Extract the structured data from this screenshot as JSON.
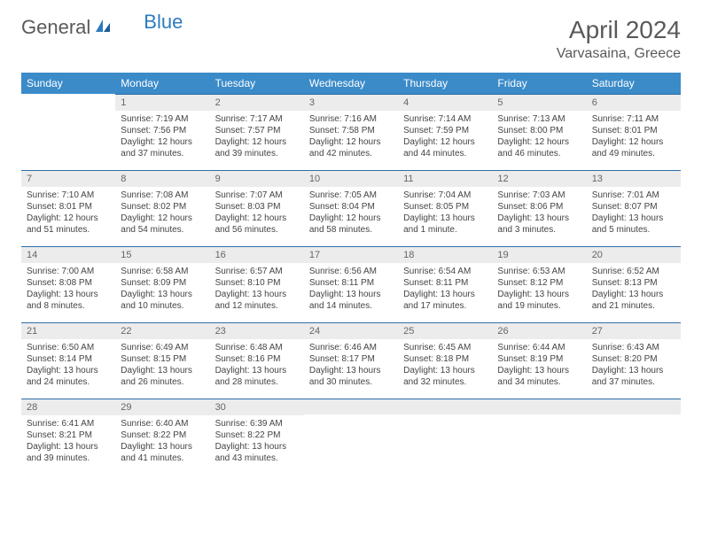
{
  "logo": {
    "text1": "General",
    "text2": "Blue"
  },
  "title": {
    "month": "April 2024",
    "location": "Varvasaina, Greece"
  },
  "colors": {
    "header_bg": "#3b8bc9",
    "header_text": "#ffffff",
    "daynum_bg": "#ececec",
    "daynum_border": "#2f6fa8",
    "logo_gray": "#5a5a5a",
    "logo_blue": "#2f7bbf",
    "body_text": "#444444"
  },
  "weekdays": [
    "Sunday",
    "Monday",
    "Tuesday",
    "Wednesday",
    "Thursday",
    "Friday",
    "Saturday"
  ],
  "cells": [
    {
      "day": "",
      "lines": []
    },
    {
      "day": "1",
      "lines": [
        "Sunrise: 7:19 AM",
        "Sunset: 7:56 PM",
        "Daylight: 12 hours",
        "and 37 minutes."
      ]
    },
    {
      "day": "2",
      "lines": [
        "Sunrise: 7:17 AM",
        "Sunset: 7:57 PM",
        "Daylight: 12 hours",
        "and 39 minutes."
      ]
    },
    {
      "day": "3",
      "lines": [
        "Sunrise: 7:16 AM",
        "Sunset: 7:58 PM",
        "Daylight: 12 hours",
        "and 42 minutes."
      ]
    },
    {
      "day": "4",
      "lines": [
        "Sunrise: 7:14 AM",
        "Sunset: 7:59 PM",
        "Daylight: 12 hours",
        "and 44 minutes."
      ]
    },
    {
      "day": "5",
      "lines": [
        "Sunrise: 7:13 AM",
        "Sunset: 8:00 PM",
        "Daylight: 12 hours",
        "and 46 minutes."
      ]
    },
    {
      "day": "6",
      "lines": [
        "Sunrise: 7:11 AM",
        "Sunset: 8:01 PM",
        "Daylight: 12 hours",
        "and 49 minutes."
      ]
    },
    {
      "day": "7",
      "lines": [
        "Sunrise: 7:10 AM",
        "Sunset: 8:01 PM",
        "Daylight: 12 hours",
        "and 51 minutes."
      ]
    },
    {
      "day": "8",
      "lines": [
        "Sunrise: 7:08 AM",
        "Sunset: 8:02 PM",
        "Daylight: 12 hours",
        "and 54 minutes."
      ]
    },
    {
      "day": "9",
      "lines": [
        "Sunrise: 7:07 AM",
        "Sunset: 8:03 PM",
        "Daylight: 12 hours",
        "and 56 minutes."
      ]
    },
    {
      "day": "10",
      "lines": [
        "Sunrise: 7:05 AM",
        "Sunset: 8:04 PM",
        "Daylight: 12 hours",
        "and 58 minutes."
      ]
    },
    {
      "day": "11",
      "lines": [
        "Sunrise: 7:04 AM",
        "Sunset: 8:05 PM",
        "Daylight: 13 hours",
        "and 1 minute."
      ]
    },
    {
      "day": "12",
      "lines": [
        "Sunrise: 7:03 AM",
        "Sunset: 8:06 PM",
        "Daylight: 13 hours",
        "and 3 minutes."
      ]
    },
    {
      "day": "13",
      "lines": [
        "Sunrise: 7:01 AM",
        "Sunset: 8:07 PM",
        "Daylight: 13 hours",
        "and 5 minutes."
      ]
    },
    {
      "day": "14",
      "lines": [
        "Sunrise: 7:00 AM",
        "Sunset: 8:08 PM",
        "Daylight: 13 hours",
        "and 8 minutes."
      ]
    },
    {
      "day": "15",
      "lines": [
        "Sunrise: 6:58 AM",
        "Sunset: 8:09 PM",
        "Daylight: 13 hours",
        "and 10 minutes."
      ]
    },
    {
      "day": "16",
      "lines": [
        "Sunrise: 6:57 AM",
        "Sunset: 8:10 PM",
        "Daylight: 13 hours",
        "and 12 minutes."
      ]
    },
    {
      "day": "17",
      "lines": [
        "Sunrise: 6:56 AM",
        "Sunset: 8:11 PM",
        "Daylight: 13 hours",
        "and 14 minutes."
      ]
    },
    {
      "day": "18",
      "lines": [
        "Sunrise: 6:54 AM",
        "Sunset: 8:11 PM",
        "Daylight: 13 hours",
        "and 17 minutes."
      ]
    },
    {
      "day": "19",
      "lines": [
        "Sunrise: 6:53 AM",
        "Sunset: 8:12 PM",
        "Daylight: 13 hours",
        "and 19 minutes."
      ]
    },
    {
      "day": "20",
      "lines": [
        "Sunrise: 6:52 AM",
        "Sunset: 8:13 PM",
        "Daylight: 13 hours",
        "and 21 minutes."
      ]
    },
    {
      "day": "21",
      "lines": [
        "Sunrise: 6:50 AM",
        "Sunset: 8:14 PM",
        "Daylight: 13 hours",
        "and 24 minutes."
      ]
    },
    {
      "day": "22",
      "lines": [
        "Sunrise: 6:49 AM",
        "Sunset: 8:15 PM",
        "Daylight: 13 hours",
        "and 26 minutes."
      ]
    },
    {
      "day": "23",
      "lines": [
        "Sunrise: 6:48 AM",
        "Sunset: 8:16 PM",
        "Daylight: 13 hours",
        "and 28 minutes."
      ]
    },
    {
      "day": "24",
      "lines": [
        "Sunrise: 6:46 AM",
        "Sunset: 8:17 PM",
        "Daylight: 13 hours",
        "and 30 minutes."
      ]
    },
    {
      "day": "25",
      "lines": [
        "Sunrise: 6:45 AM",
        "Sunset: 8:18 PM",
        "Daylight: 13 hours",
        "and 32 minutes."
      ]
    },
    {
      "day": "26",
      "lines": [
        "Sunrise: 6:44 AM",
        "Sunset: 8:19 PM",
        "Daylight: 13 hours",
        "and 34 minutes."
      ]
    },
    {
      "day": "27",
      "lines": [
        "Sunrise: 6:43 AM",
        "Sunset: 8:20 PM",
        "Daylight: 13 hours",
        "and 37 minutes."
      ]
    },
    {
      "day": "28",
      "lines": [
        "Sunrise: 6:41 AM",
        "Sunset: 8:21 PM",
        "Daylight: 13 hours",
        "and 39 minutes."
      ]
    },
    {
      "day": "29",
      "lines": [
        "Sunrise: 6:40 AM",
        "Sunset: 8:22 PM",
        "Daylight: 13 hours",
        "and 41 minutes."
      ]
    },
    {
      "day": "30",
      "lines": [
        "Sunrise: 6:39 AM",
        "Sunset: 8:22 PM",
        "Daylight: 13 hours",
        "and 43 minutes."
      ]
    },
    {
      "day": "",
      "lines": []
    },
    {
      "day": "",
      "lines": []
    },
    {
      "day": "",
      "lines": []
    },
    {
      "day": "",
      "lines": []
    }
  ]
}
